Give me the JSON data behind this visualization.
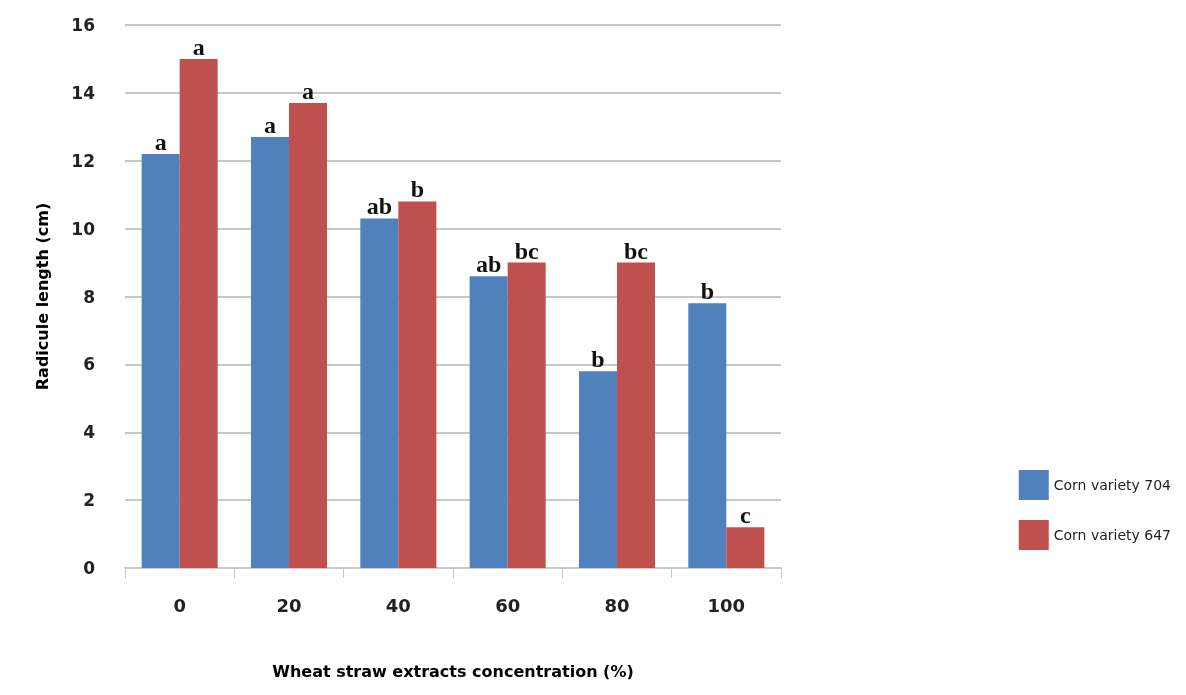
{
  "chart_data": {
    "type": "bar",
    "xlabel": "Wheat straw extracts concentration (%)",
    "ylabel": "Radicule length (cm)",
    "categories": [
      "0",
      "20",
      "40",
      "60",
      "80",
      "100"
    ],
    "series": [
      {
        "name": "Corn variety 704",
        "color": "#4f81bd",
        "values": [
          12.2,
          12.7,
          10.3,
          8.6,
          5.8,
          7.8
        ],
        "value_labels": [
          "a",
          "a",
          "ab",
          "ab",
          "b",
          "b"
        ]
      },
      {
        "name": "Corn variety 647",
        "color": "#c0504d",
        "values": [
          15.0,
          13.7,
          10.8,
          9.0,
          9.0,
          1.2
        ],
        "value_labels": [
          "a",
          "a",
          "b",
          "bc",
          "bc",
          "c"
        ]
      }
    ],
    "ylim": [
      0,
      16
    ],
    "yticks": [
      0,
      2,
      4,
      6,
      8,
      10,
      12,
      14,
      16
    ],
    "grid": "y",
    "legend": "right"
  }
}
